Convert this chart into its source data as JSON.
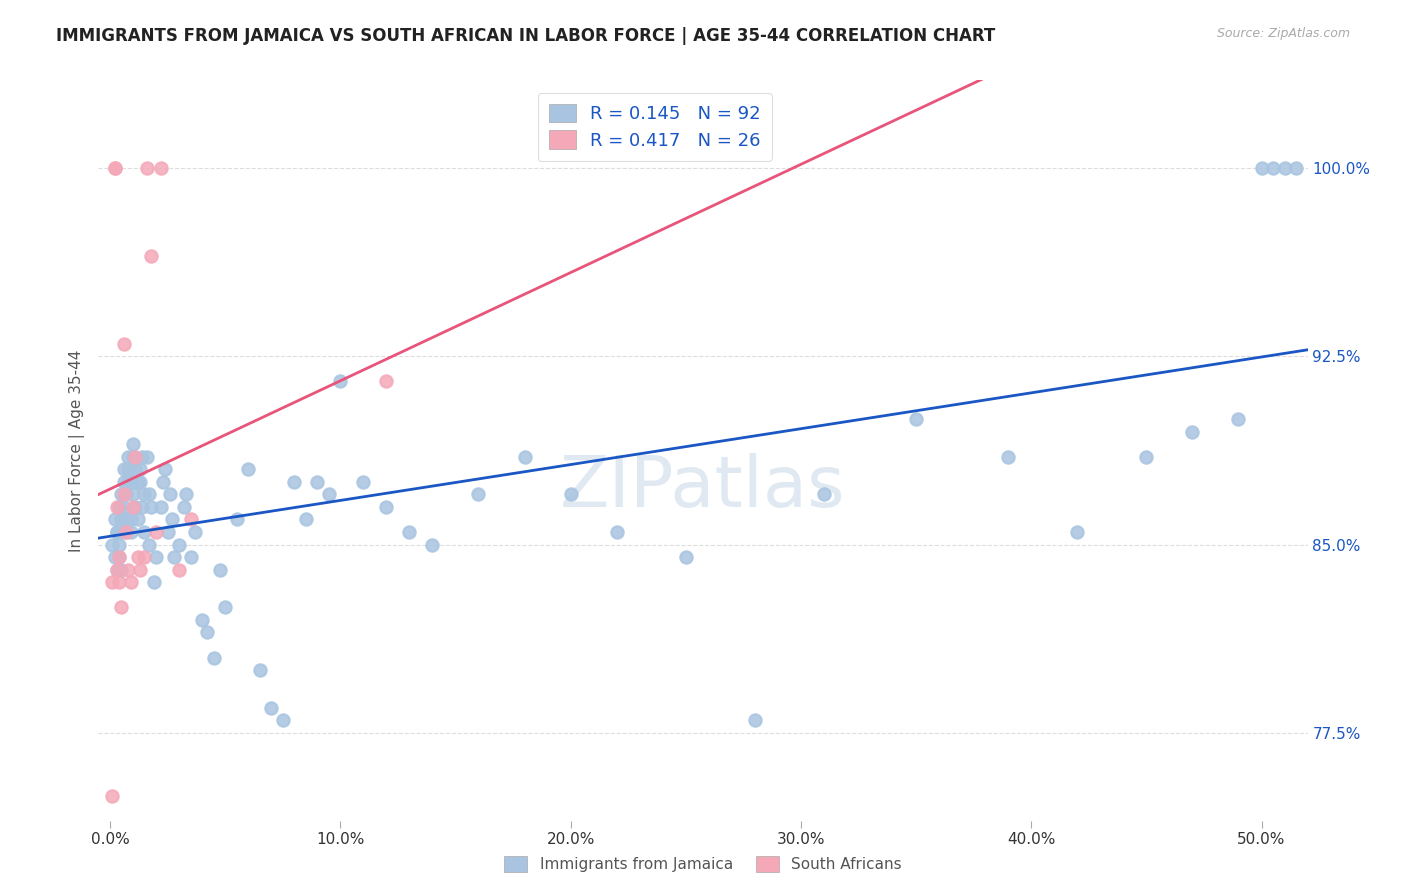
{
  "title": "IMMIGRANTS FROM JAMAICA VS SOUTH AFRICAN IN LABOR FORCE | AGE 35-44 CORRELATION CHART",
  "source": "Source: ZipAtlas.com",
  "ylabel": "In Labor Force | Age 35-44",
  "yticks": [
    77.5,
    85.0,
    92.5,
    100.0
  ],
  "ytick_labels": [
    "77.5%",
    "85.0%",
    "92.5%",
    "100.0%"
  ],
  "xmin": -0.005,
  "xmax": 0.52,
  "ymin": 74.0,
  "ymax": 103.5,
  "watermark": "ZIPatlas",
  "legend_jamaica_r": "R = 0.145",
  "legend_jamaica_n": "N = 92",
  "legend_sa_r": "R = 0.417",
  "legend_sa_n": "N = 26",
  "jamaica_color": "#a8c4e0",
  "sa_color": "#f4a8b8",
  "jamaica_line_color": "#1a56c4",
  "sa_line_color": "#e8547a",
  "jamaica_label": "Immigrants from Jamaica",
  "sa_label": "South Africans",
  "jamaica_x": [
    0.001,
    0.002,
    0.002,
    0.003,
    0.003,
    0.003,
    0.004,
    0.004,
    0.004,
    0.005,
    0.005,
    0.005,
    0.005,
    0.006,
    0.006,
    0.006,
    0.007,
    0.007,
    0.007,
    0.008,
    0.008,
    0.008,
    0.009,
    0.009,
    0.009,
    0.01,
    0.01,
    0.01,
    0.011,
    0.011,
    0.012,
    0.012,
    0.013,
    0.013,
    0.014,
    0.014,
    0.015,
    0.015,
    0.016,
    0.017,
    0.017,
    0.018,
    0.019,
    0.02,
    0.022,
    0.023,
    0.024,
    0.025,
    0.026,
    0.027,
    0.028,
    0.03,
    0.032,
    0.033,
    0.035,
    0.037,
    0.04,
    0.042,
    0.045,
    0.048,
    0.05,
    0.055,
    0.06,
    0.065,
    0.07,
    0.075,
    0.08,
    0.085,
    0.09,
    0.095,
    0.1,
    0.11,
    0.12,
    0.13,
    0.14,
    0.16,
    0.18,
    0.2,
    0.22,
    0.25,
    0.28,
    0.31,
    0.35,
    0.39,
    0.42,
    0.45,
    0.47,
    0.49,
    0.5,
    0.505,
    0.51,
    0.515
  ],
  "jamaica_y": [
    85.0,
    84.5,
    86.0,
    85.5,
    84.0,
    85.5,
    86.5,
    84.5,
    85.0,
    86.0,
    85.5,
    87.0,
    84.0,
    86.5,
    87.5,
    88.0,
    87.0,
    85.5,
    86.0,
    87.5,
    88.0,
    88.5,
    87.5,
    86.0,
    85.5,
    88.5,
    89.0,
    87.0,
    88.0,
    86.5,
    87.5,
    86.0,
    88.0,
    87.5,
    88.5,
    86.5,
    87.0,
    85.5,
    88.5,
    87.0,
    85.0,
    86.5,
    83.5,
    84.5,
    86.5,
    87.5,
    88.0,
    85.5,
    87.0,
    86.0,
    84.5,
    85.0,
    86.5,
    87.0,
    84.5,
    85.5,
    82.0,
    81.5,
    80.5,
    84.0,
    82.5,
    86.0,
    88.0,
    80.0,
    78.5,
    78.0,
    87.5,
    86.0,
    87.5,
    87.0,
    91.5,
    87.5,
    86.5,
    85.5,
    85.0,
    87.0,
    88.5,
    87.0,
    85.5,
    84.5,
    78.0,
    87.0,
    90.0,
    88.5,
    85.5,
    88.5,
    89.5,
    90.0,
    100.0,
    100.0,
    100.0,
    100.0
  ],
  "sa_x": [
    0.001,
    0.001,
    0.002,
    0.002,
    0.003,
    0.003,
    0.004,
    0.004,
    0.005,
    0.006,
    0.006,
    0.007,
    0.008,
    0.009,
    0.01,
    0.011,
    0.012,
    0.013,
    0.015,
    0.016,
    0.018,
    0.02,
    0.022,
    0.03,
    0.035,
    0.12
  ],
  "sa_y": [
    75.0,
    83.5,
    100.0,
    100.0,
    86.5,
    84.0,
    84.5,
    83.5,
    82.5,
    93.0,
    87.0,
    85.5,
    84.0,
    83.5,
    86.5,
    88.5,
    84.5,
    84.0,
    84.5,
    100.0,
    96.5,
    85.5,
    100.0,
    84.0,
    86.0,
    91.5
  ]
}
